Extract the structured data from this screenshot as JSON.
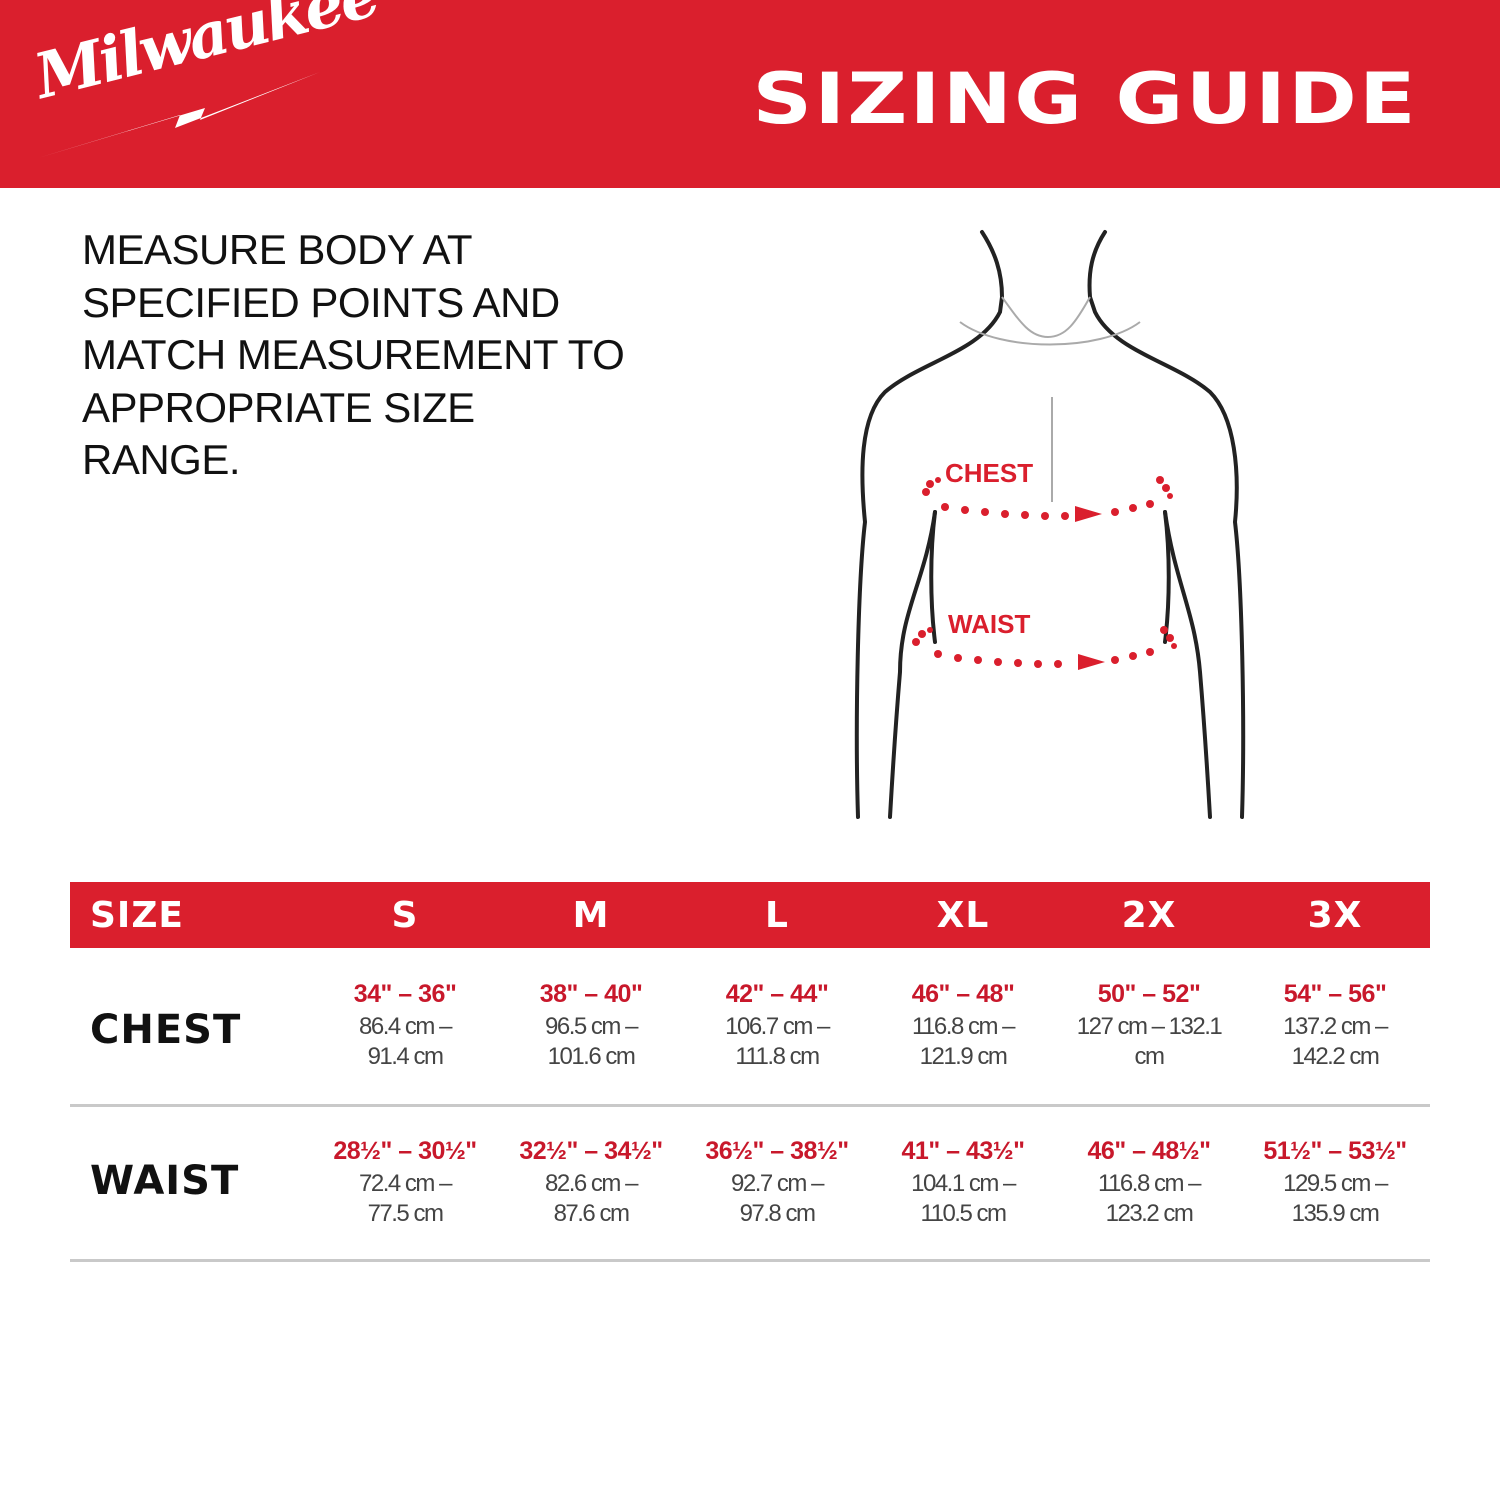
{
  "header": {
    "brand": "Milwaukee",
    "title": "SIZING GUIDE",
    "background_color": "#da1f2d"
  },
  "instructions": "MEASURE BODY AT SPECIFIED POINTS AND MATCH MEASUREMENT TO APPROPRIATE SIZE RANGE.",
  "figure": {
    "chest_label": "CHEST",
    "waist_label": "WAIST",
    "accent_color": "#da1f2d"
  },
  "table": {
    "header": [
      "SIZE",
      "S",
      "M",
      "L",
      "XL",
      "2X",
      "3X"
    ],
    "rows": [
      {
        "label": "CHEST",
        "cells": [
          {
            "in": "34\" – 36\"",
            "cm1": "86.4 cm –",
            "cm2": "91.4 cm"
          },
          {
            "in": "38\" – 40\"",
            "cm1": "96.5 cm –",
            "cm2": "101.6 cm"
          },
          {
            "in": "42\" – 44\"",
            "cm1": "106.7 cm –",
            "cm2": "111.8 cm"
          },
          {
            "in": "46\" – 48\"",
            "cm1": "116.8 cm –",
            "cm2": "121.9 cm"
          },
          {
            "in": "50\" – 52\"",
            "cm1": "127 cm –  132.1",
            "cm2": "cm"
          },
          {
            "in": "54\" – 56\"",
            "cm1": "137.2 cm –",
            "cm2": "142.2 cm"
          }
        ]
      },
      {
        "label": "WAIST",
        "cells": [
          {
            "in": "28½\" – 30½\"",
            "cm1": "72.4 cm –",
            "cm2": "77.5 cm"
          },
          {
            "in": "32½\" – 34½\"",
            "cm1": "82.6 cm –",
            "cm2": "87.6 cm"
          },
          {
            "in": "36½\" – 38½\"",
            "cm1": "92.7 cm –",
            "cm2": "97.8 cm"
          },
          {
            "in": "41\" – 43½\"",
            "cm1": "104.1 cm –",
            "cm2": "110.5 cm"
          },
          {
            "in": "46\" – 48½\"",
            "cm1": "116.8 cm –",
            "cm2": "123.2 cm"
          },
          {
            "in": "51½\" – 53½\"",
            "cm1": "129.5 cm –",
            "cm2": "135.9 cm"
          }
        ]
      }
    ]
  }
}
